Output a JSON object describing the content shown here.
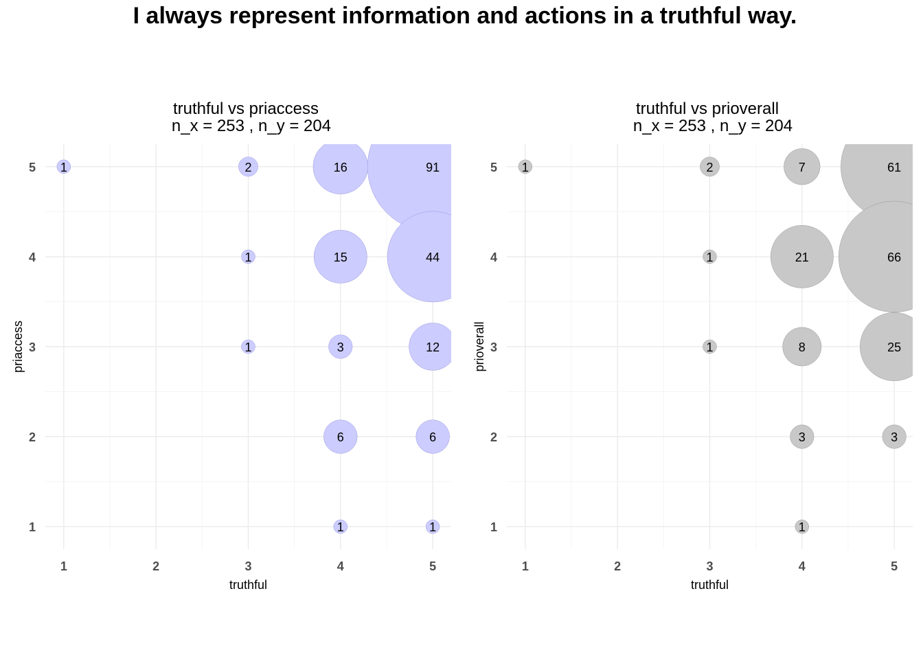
{
  "title": "I always represent information and actions in a truthful way.",
  "chart_data": [
    {
      "type": "scatter",
      "title": "truthful vs priaccess",
      "subtitle": "n_x = 253 , n_y = 204",
      "xlabel": "truthful",
      "ylabel": "priaccess",
      "xlim": [
        0.8,
        5.2
      ],
      "ylim": [
        0.75,
        5.25
      ],
      "x_ticks": [
        "1",
        "2",
        "3",
        "4",
        "5"
      ],
      "y_ticks": [
        "1",
        "2",
        "3",
        "4",
        "5"
      ],
      "bubble_color": "#ccccff",
      "bubble_stroke": "#9999dd",
      "grid": true,
      "points": [
        {
          "x": 1,
          "y": 5,
          "n": 1
        },
        {
          "x": 3,
          "y": 5,
          "n": 2
        },
        {
          "x": 4,
          "y": 5,
          "n": 16
        },
        {
          "x": 5,
          "y": 5,
          "n": 91
        },
        {
          "x": 3,
          "y": 4,
          "n": 1
        },
        {
          "x": 4,
          "y": 4,
          "n": 15
        },
        {
          "x": 5,
          "y": 4,
          "n": 44
        },
        {
          "x": 3,
          "y": 3,
          "n": 1
        },
        {
          "x": 4,
          "y": 3,
          "n": 3
        },
        {
          "x": 5,
          "y": 3,
          "n": 12
        },
        {
          "x": 4,
          "y": 2,
          "n": 6
        },
        {
          "x": 5,
          "y": 2,
          "n": 6
        },
        {
          "x": 4,
          "y": 1,
          "n": 1
        },
        {
          "x": 5,
          "y": 1,
          "n": 1
        }
      ]
    },
    {
      "type": "scatter",
      "title": "truthful vs prioverall",
      "subtitle": "n_x = 253 , n_y = 204",
      "xlabel": "truthful",
      "ylabel": "prioverall",
      "xlim": [
        0.8,
        5.2
      ],
      "ylim": [
        0.75,
        5.25
      ],
      "x_ticks": [
        "1",
        "2",
        "3",
        "4",
        "5"
      ],
      "y_ticks": [
        "1",
        "2",
        "3",
        "4",
        "5"
      ],
      "bubble_color": "#c8c8c8",
      "bubble_stroke": "#999999",
      "grid": true,
      "points": [
        {
          "x": 1,
          "y": 5,
          "n": 1
        },
        {
          "x": 3,
          "y": 5,
          "n": 2
        },
        {
          "x": 4,
          "y": 5,
          "n": 7
        },
        {
          "x": 5,
          "y": 5,
          "n": 61
        },
        {
          "x": 3,
          "y": 4,
          "n": 1
        },
        {
          "x": 4,
          "y": 4,
          "n": 21
        },
        {
          "x": 5,
          "y": 4,
          "n": 66
        },
        {
          "x": 3,
          "y": 3,
          "n": 1
        },
        {
          "x": 4,
          "y": 3,
          "n": 8
        },
        {
          "x": 5,
          "y": 3,
          "n": 25
        },
        {
          "x": 4,
          "y": 2,
          "n": 3
        },
        {
          "x": 5,
          "y": 2,
          "n": 3
        },
        {
          "x": 4,
          "y": 1,
          "n": 1
        }
      ]
    }
  ]
}
